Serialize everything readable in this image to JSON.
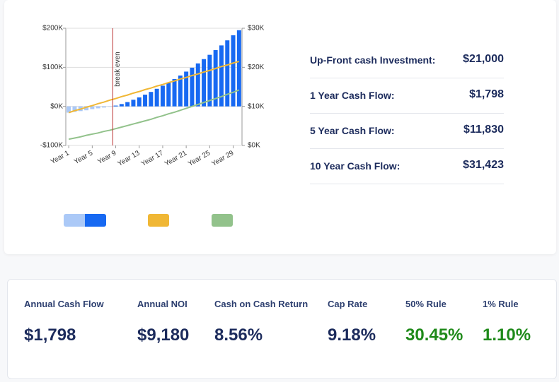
{
  "chart_data": {
    "type": "bar",
    "categories": [
      "Year 1",
      null,
      null,
      null,
      "Year 5",
      null,
      null,
      null,
      "Year 9",
      null,
      null,
      null,
      "Year 13",
      null,
      null,
      null,
      "Year 17",
      null,
      null,
      null,
      "Year 21",
      null,
      null,
      null,
      "Year 25",
      null,
      null,
      null,
      "Year 29",
      null
    ],
    "series": [
      {
        "color": "#abc9f7",
        "values": [
          -16000,
          -14000,
          -12000,
          -10000,
          -7000,
          -5000,
          -3000,
          -1000,
          null,
          null,
          null,
          null,
          null,
          null,
          null,
          null,
          null,
          null,
          null,
          null,
          null,
          null,
          null,
          null,
          null,
          null,
          null,
          null,
          null,
          null
        ]
      },
      {
        "color": "#1769f2",
        "values": [
          null,
          null,
          null,
          null,
          null,
          null,
          null,
          null,
          2000,
          6000,
          11000,
          17000,
          23000,
          30000,
          37000,
          45000,
          53000,
          61000,
          70000,
          79000,
          89000,
          99000,
          110000,
          121000,
          132000,
          144000,
          156000,
          169000,
          182000,
          195000
        ]
      },
      {
        "type": "line",
        "axis": "y2",
        "color": "#f0b735",
        "values": [
          8400,
          8900,
          9300,
          9800,
          10200,
          10700,
          11100,
          11600,
          12000,
          12500,
          12900,
          13400,
          13800,
          14300,
          14700,
          15200,
          15600,
          16100,
          16500,
          17000,
          17400,
          17900,
          18300,
          18800,
          19200,
          19700,
          20200,
          20600,
          21100,
          21500
        ]
      },
      {
        "type": "line",
        "axis": "y2",
        "color": "#92c28b",
        "values": [
          1600,
          1900,
          2200,
          2600,
          2900,
          3200,
          3600,
          3900,
          4300,
          4700,
          5100,
          5500,
          5900,
          6300,
          6700,
          7200,
          7600,
          8100,
          8500,
          9000,
          9500,
          10000,
          10500,
          11000,
          11500,
          12000,
          12500,
          13100,
          13600,
          14200
        ]
      }
    ],
    "ylim": [
      -100000,
      200000
    ],
    "yticks": [
      {
        "value": -100000,
        "label": "-$100K"
      },
      {
        "value": 0,
        "label": "$0K"
      },
      {
        "value": 100000,
        "label": "$100K"
      },
      {
        "value": 200000,
        "label": "$200K"
      }
    ],
    "y2lim": [
      0,
      30000
    ],
    "y2ticks": [
      {
        "value": 0,
        "label": "$0K"
      },
      {
        "value": 10000,
        "label": "$10K"
      },
      {
        "value": 20000,
        "label": "$20K"
      },
      {
        "value": 30000,
        "label": "$30K"
      }
    ],
    "annotations": [
      {
        "text": "break even",
        "x": 8.5
      }
    ]
  },
  "summary": [
    {
      "label": "Up-Front cash Investment:",
      "value": "$21,000"
    },
    {
      "label": "1 Year Cash Flow:",
      "value": "$1,798"
    },
    {
      "label": "5 Year Cash Flow:",
      "value": "$11,830"
    },
    {
      "label": "10 Year Cash Flow:",
      "value": "$31,423"
    }
  ],
  "metrics": [
    {
      "label": "Annual Cash Flow",
      "value": "$1,798"
    },
    {
      "label": "Annual NOI",
      "value": "$9,180"
    },
    {
      "label": "Cash on Cash Return",
      "value": "8.56%"
    },
    {
      "label": "Cap Rate",
      "value": "9.18%"
    },
    {
      "label": "50% Rule",
      "value": "30.45%"
    },
    {
      "label": "1% Rule",
      "value": "1.10%"
    }
  ]
}
